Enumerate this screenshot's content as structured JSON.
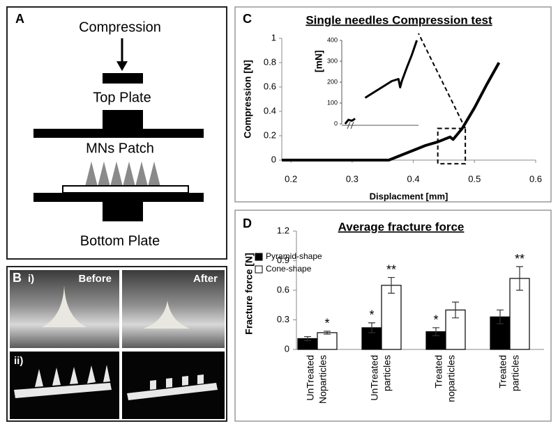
{
  "figure": {
    "panel_a": {
      "label": "A",
      "compression": "Compression",
      "top_plate": "Top Plate",
      "patch": "MNs Patch",
      "bottom_plate": "Bottom Plate"
    },
    "panel_b": {
      "label": "B",
      "row_1": "i)",
      "before": "Before",
      "after": "After",
      "row_2": "ii)"
    }
  },
  "chart_data": [
    {
      "type": "line",
      "label": "C",
      "title": "Single needles Compression test",
      "x_label": "Displacment [mm]",
      "y_label": "Compression [N]",
      "x": [
        0.185,
        0.25,
        0.3,
        0.35,
        0.36,
        0.38,
        0.4,
        0.42,
        0.44,
        0.46,
        0.465,
        0.47,
        0.48,
        0.5,
        0.52,
        0.54
      ],
      "values": [
        0,
        0,
        0,
        0,
        0,
        0.04,
        0.08,
        0.12,
        0.15,
        0.19,
        0.17,
        0.2,
        0.26,
        0.43,
        0.62,
        0.8
      ],
      "color": "#000000",
      "xlim": [
        0.185,
        0.6
      ],
      "xticks": [
        0.2,
        0.3,
        0.4,
        0.5,
        0.6
      ],
      "ylim": [
        0,
        1
      ],
      "yticks": [
        0,
        0.2,
        0.4,
        0.6,
        0.8,
        1
      ],
      "zoom_region": {
        "x": [
          0.44,
          0.485
        ],
        "y": [
          -0.03,
          0.26
        ]
      }
    },
    {
      "type": "bar",
      "label": "D",
      "title": "Average fracture force",
      "y_label": "Fracture force [N]",
      "categories": [
        [
          "UnTreated",
          "Noparticles"
        ],
        [
          "UnTreated",
          "particles"
        ],
        [
          "Treated",
          "noparticles"
        ],
        [
          "Treated",
          "particles"
        ]
      ],
      "series": [
        {
          "name": "Pyramid-shape",
          "color": "#000000",
          "values": [
            0.11,
            0.22,
            0.18,
            0.33
          ],
          "errors": [
            0.02,
            0.05,
            0.04,
            0.07
          ],
          "significance": [
            null,
            "*",
            "*",
            null
          ]
        },
        {
          "name": "Cone-shape",
          "color": "#ffffff",
          "values": [
            0.17,
            0.65,
            0.4,
            0.72
          ],
          "errors": [
            0.015,
            0.08,
            0.08,
            0.12
          ],
          "significance": [
            "*",
            "**",
            null,
            "**"
          ]
        }
      ],
      "ylim": [
        0,
        1.2
      ],
      "yticks": [
        0,
        0.3,
        0.6,
        0.9,
        1.2
      ],
      "legend": "upper left"
    },
    {
      "type": "line",
      "y_label": "[mN]",
      "x": [
        0.44,
        0.442,
        0.444,
        0.446,
        0.448,
        0.452,
        0.456,
        0.46,
        0.464,
        0.468,
        0.472,
        0.473,
        0.474,
        0.477,
        0.48,
        0.483
      ],
      "values": [
        0,
        20,
        15,
        25,
        null,
        125,
        145,
        165,
        185,
        205,
        215,
        175,
        205,
        270,
        330,
        400
      ],
      "color": "#000000",
      "xlim": [
        0.438,
        0.484
      ],
      "ylim": [
        0,
        400
      ],
      "yticks": [
        0,
        100,
        200,
        300,
        400
      ]
    }
  ]
}
